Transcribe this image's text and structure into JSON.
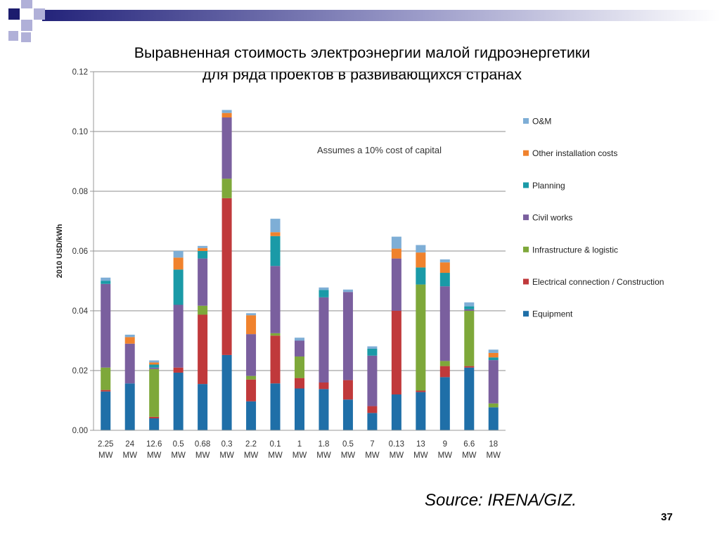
{
  "slide": {
    "title_line1": "Выравненная стоимость электроэнергии малой гидроэнергетики",
    "title_line2": "для ряда проектов в развивающихся странах",
    "source": "Source: IRENA/GIZ.",
    "page_number": "37"
  },
  "chart_data": {
    "type": "bar",
    "stacked": true,
    "title": "",
    "ylabel": "2010 USD/kWh",
    "xlabel": "",
    "ylim": [
      0,
      0.12
    ],
    "yticks": [
      "0.00",
      "0.02",
      "0.04",
      "0.06",
      "0.08",
      "0.10",
      "0.12"
    ],
    "grid": true,
    "legend_position": "right",
    "annotation": "Assumes a 10% cost of capital",
    "categories": [
      "2.25",
      "24",
      "12.6",
      "0.5",
      "0.68",
      "0.3",
      "2.2",
      "0.1",
      "1",
      "1.8",
      "0.5",
      "7",
      "0.13",
      "13",
      "9",
      "6.6",
      "18"
    ],
    "category_unit": "MW",
    "series": [
      {
        "name": "Equipment",
        "color": "#1f6fa8",
        "values": [
          0.013,
          0.0157,
          0.004,
          0.0193,
          0.0155,
          0.0252,
          0.0097,
          0.0157,
          0.014,
          0.0138,
          0.0103,
          0.0058,
          0.012,
          0.0128,
          0.0178,
          0.021,
          0.0077
        ]
      },
      {
        "name": "Electrical connection / Construction",
        "color": "#c0393b",
        "values": [
          0.0005,
          0.0,
          0.0005,
          0.0017,
          0.0232,
          0.0525,
          0.0073,
          0.016,
          0.0035,
          0.0022,
          0.0065,
          0.0023,
          0.028,
          0.0005,
          0.0037,
          0.0005,
          0.0
        ]
      },
      {
        "name": "Infrastructure & logistic",
        "color": "#7ea83a",
        "values": [
          0.0075,
          0.0,
          0.016,
          0.0,
          0.003,
          0.0065,
          0.0012,
          0.0008,
          0.0072,
          0.0,
          0.0,
          0.0,
          0.0,
          0.0355,
          0.0017,
          0.0185,
          0.0013
        ]
      },
      {
        "name": "Civil works",
        "color": "#7a5f9e",
        "values": [
          0.028,
          0.0133,
          0.0005,
          0.021,
          0.0158,
          0.0205,
          0.014,
          0.0225,
          0.0053,
          0.0285,
          0.0295,
          0.0169,
          0.0175,
          0.0,
          0.025,
          0.0005,
          0.0145
        ]
      },
      {
        "name": "Planning",
        "color": "#1a9aa7",
        "values": [
          0.001,
          0.0,
          0.001,
          0.0118,
          0.0025,
          0.0,
          0.0,
          0.01,
          0.0,
          0.0025,
          0.0,
          0.0023,
          0.0,
          0.0057,
          0.0045,
          0.001,
          0.0009
        ]
      },
      {
        "name": "Other installation costs",
        "color": "#f0822d",
        "values": [
          0.0,
          0.0022,
          0.0007,
          0.004,
          0.001,
          0.0015,
          0.0063,
          0.0013,
          0.0,
          0.0,
          0.0,
          0.0,
          0.0033,
          0.005,
          0.0035,
          0.0,
          0.0015
        ]
      },
      {
        "name": "O&M",
        "color": "#7eaed6",
        "values": [
          0.0011,
          0.0008,
          0.0007,
          0.0022,
          0.0007,
          0.001,
          0.0007,
          0.0045,
          0.001,
          0.0008,
          0.0008,
          0.0008,
          0.004,
          0.0025,
          0.001,
          0.0013,
          0.0011
        ]
      }
    ]
  }
}
